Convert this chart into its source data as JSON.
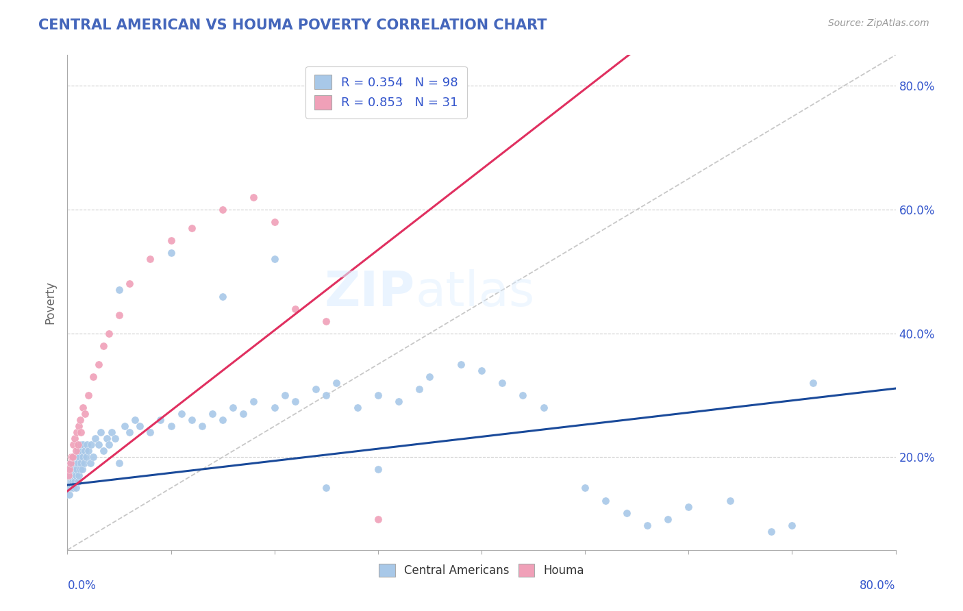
{
  "title": "CENTRAL AMERICAN VS HOUMA POVERTY CORRELATION CHART",
  "source_text": "Source: ZipAtlas.com",
  "ylabel": "Poverty",
  "xmin": 0.0,
  "xmax": 0.8,
  "ymin": 0.05,
  "ymax": 0.85,
  "yticks": [
    0.2,
    0.4,
    0.6,
    0.8
  ],
  "r_blue": 0.354,
  "n_blue": 98,
  "r_pink": 0.853,
  "n_pink": 31,
  "blue_color": "#A8C8E8",
  "pink_color": "#F0A0B8",
  "blue_line_color": "#1A4A9A",
  "pink_line_color": "#E03060",
  "ref_line_color": "#C8C8C8",
  "watermark_zip": "ZIP",
  "watermark_atlas": "atlas",
  "blue_x": [
    0.001,
    0.002,
    0.002,
    0.003,
    0.003,
    0.003,
    0.004,
    0.004,
    0.004,
    0.005,
    0.005,
    0.005,
    0.006,
    0.006,
    0.007,
    0.007,
    0.007,
    0.008,
    0.008,
    0.008,
    0.009,
    0.009,
    0.01,
    0.01,
    0.01,
    0.011,
    0.011,
    0.012,
    0.012,
    0.013,
    0.013,
    0.014,
    0.015,
    0.015,
    0.016,
    0.017,
    0.018,
    0.019,
    0.02,
    0.022,
    0.023,
    0.025,
    0.027,
    0.03,
    0.032,
    0.035,
    0.038,
    0.04,
    0.043,
    0.046,
    0.05,
    0.055,
    0.06,
    0.065,
    0.07,
    0.08,
    0.09,
    0.1,
    0.11,
    0.12,
    0.13,
    0.14,
    0.15,
    0.16,
    0.17,
    0.18,
    0.2,
    0.21,
    0.22,
    0.24,
    0.25,
    0.26,
    0.28,
    0.3,
    0.32,
    0.34,
    0.35,
    0.38,
    0.4,
    0.42,
    0.44,
    0.46,
    0.5,
    0.52,
    0.54,
    0.56,
    0.58,
    0.6,
    0.64,
    0.68,
    0.7,
    0.72,
    0.05,
    0.1,
    0.15,
    0.2,
    0.25,
    0.3
  ],
  "blue_y": [
    0.15,
    0.14,
    0.17,
    0.16,
    0.18,
    0.19,
    0.15,
    0.17,
    0.16,
    0.18,
    0.16,
    0.19,
    0.17,
    0.15,
    0.18,
    0.16,
    0.2,
    0.17,
    0.19,
    0.15,
    0.18,
    0.2,
    0.16,
    0.19,
    0.21,
    0.17,
    0.2,
    0.18,
    0.21,
    0.19,
    0.22,
    0.18,
    0.2,
    0.22,
    0.19,
    0.21,
    0.2,
    0.22,
    0.21,
    0.19,
    0.22,
    0.2,
    0.23,
    0.22,
    0.24,
    0.21,
    0.23,
    0.22,
    0.24,
    0.23,
    0.19,
    0.25,
    0.24,
    0.26,
    0.25,
    0.24,
    0.26,
    0.25,
    0.27,
    0.26,
    0.25,
    0.27,
    0.26,
    0.28,
    0.27,
    0.29,
    0.28,
    0.3,
    0.29,
    0.31,
    0.3,
    0.32,
    0.28,
    0.3,
    0.29,
    0.31,
    0.33,
    0.35,
    0.34,
    0.32,
    0.3,
    0.28,
    0.15,
    0.13,
    0.11,
    0.09,
    0.1,
    0.12,
    0.13,
    0.08,
    0.09,
    0.32,
    0.47,
    0.53,
    0.46,
    0.52,
    0.15,
    0.18
  ],
  "pink_x": [
    0.001,
    0.002,
    0.003,
    0.004,
    0.005,
    0.006,
    0.007,
    0.008,
    0.009,
    0.01,
    0.011,
    0.012,
    0.013,
    0.015,
    0.017,
    0.02,
    0.025,
    0.03,
    0.035,
    0.04,
    0.05,
    0.06,
    0.08,
    0.1,
    0.12,
    0.15,
    0.18,
    0.2,
    0.22,
    0.25,
    0.3
  ],
  "pink_y": [
    0.17,
    0.18,
    0.19,
    0.2,
    0.2,
    0.22,
    0.23,
    0.21,
    0.24,
    0.22,
    0.25,
    0.26,
    0.24,
    0.28,
    0.27,
    0.3,
    0.33,
    0.35,
    0.38,
    0.4,
    0.43,
    0.48,
    0.52,
    0.55,
    0.57,
    0.6,
    0.62,
    0.58,
    0.44,
    0.42,
    0.1
  ]
}
